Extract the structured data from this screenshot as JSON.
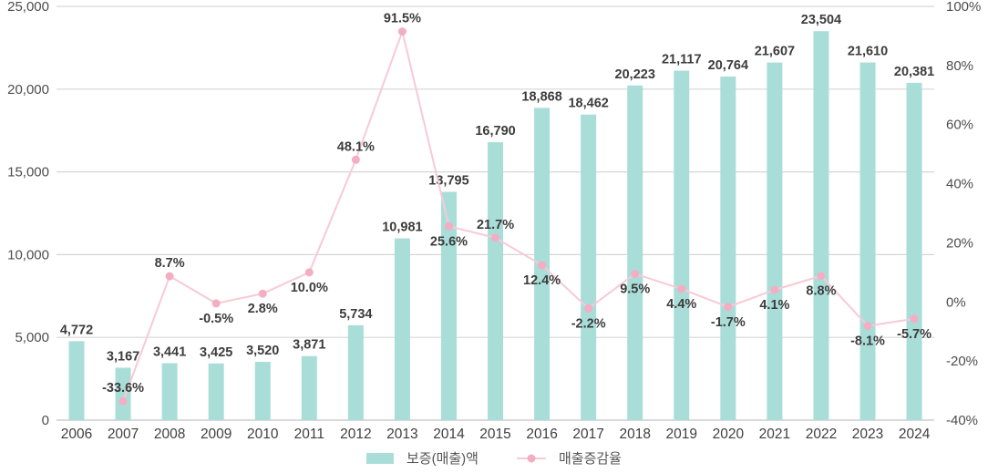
{
  "chart_data": {
    "type": "bar+line",
    "categories": [
      "2006",
      "2007",
      "2008",
      "2009",
      "2010",
      "2011",
      "2012",
      "2013",
      "2014",
      "2015",
      "2016",
      "2017",
      "2018",
      "2019",
      "2020",
      "2021",
      "2022",
      "2023",
      "2024"
    ],
    "series": [
      {
        "name": "보증(매출)액",
        "type": "bar",
        "axis": "left",
        "color": "#a9ded8",
        "values": [
          4772,
          3167,
          3441,
          3425,
          3520,
          3871,
          5734,
          10981,
          13795,
          16790,
          18868,
          18462,
          20223,
          21117,
          20764,
          21607,
          23504,
          21610,
          20381
        ],
        "labels": [
          "4,772",
          "3,167",
          "3,441",
          "3,425",
          "3,520",
          "3,871",
          "5,734",
          "10,981",
          "13,795",
          "16,790",
          "18,868",
          "18,462",
          "20,223",
          "21,117",
          "20,764",
          "21,607",
          "23,504",
          "21,610",
          "20,381"
        ]
      },
      {
        "name": "매출증감율",
        "type": "line",
        "axis": "right",
        "color": "#f8c9d6",
        "marker_color": "#f3aec3",
        "values": [
          null,
          -33.6,
          8.7,
          -0.5,
          2.8,
          10.0,
          48.1,
          91.5,
          25.6,
          21.7,
          12.4,
          -2.2,
          9.5,
          4.4,
          -1.7,
          4.1,
          8.8,
          -8.1,
          -5.7
        ],
        "labels": [
          null,
          "-33.6%",
          "8.7%",
          "-0.5%",
          "2.8%",
          "10.0%",
          "48.1%",
          "91.5%",
          "25.6%",
          "21.7%",
          "12.4%",
          "-2.2%",
          "9.5%",
          "4.4%",
          "-1.7%",
          "4.1%",
          "8.8%",
          "-8.1%",
          "-5.7%"
        ],
        "label_positions": [
          null,
          "above",
          "above",
          "below",
          "below",
          "below",
          "above",
          "above",
          "below",
          "above",
          "below",
          "below",
          "below",
          "below",
          "below",
          "below",
          "below",
          "below",
          "below"
        ]
      }
    ],
    "left_axis": {
      "min": 0,
      "max": 25000,
      "tick_step": 5000,
      "tick_labels": [
        "0",
        "5,000",
        "10,000",
        "15,000",
        "20,000",
        "25,000"
      ]
    },
    "right_axis": {
      "min": -40,
      "max": 100,
      "tick_step": 20,
      "tick_labels": [
        "-40%",
        "-20%",
        "0%",
        "20%",
        "40%",
        "60%",
        "80%",
        "100%"
      ]
    },
    "grid": "horizontal",
    "legend_position": "bottom-center",
    "colors": {
      "grid": "#d6d6d6",
      "axis_line": "#d9d9d9",
      "tick_text": "#4d4d4d",
      "data_label": "#3c3c3c",
      "background": "#ffffff"
    }
  },
  "legend": {
    "items": [
      {
        "label": "보증(매출)액",
        "swatch": "bar"
      },
      {
        "label": "매출증감율",
        "swatch": "line"
      }
    ]
  }
}
